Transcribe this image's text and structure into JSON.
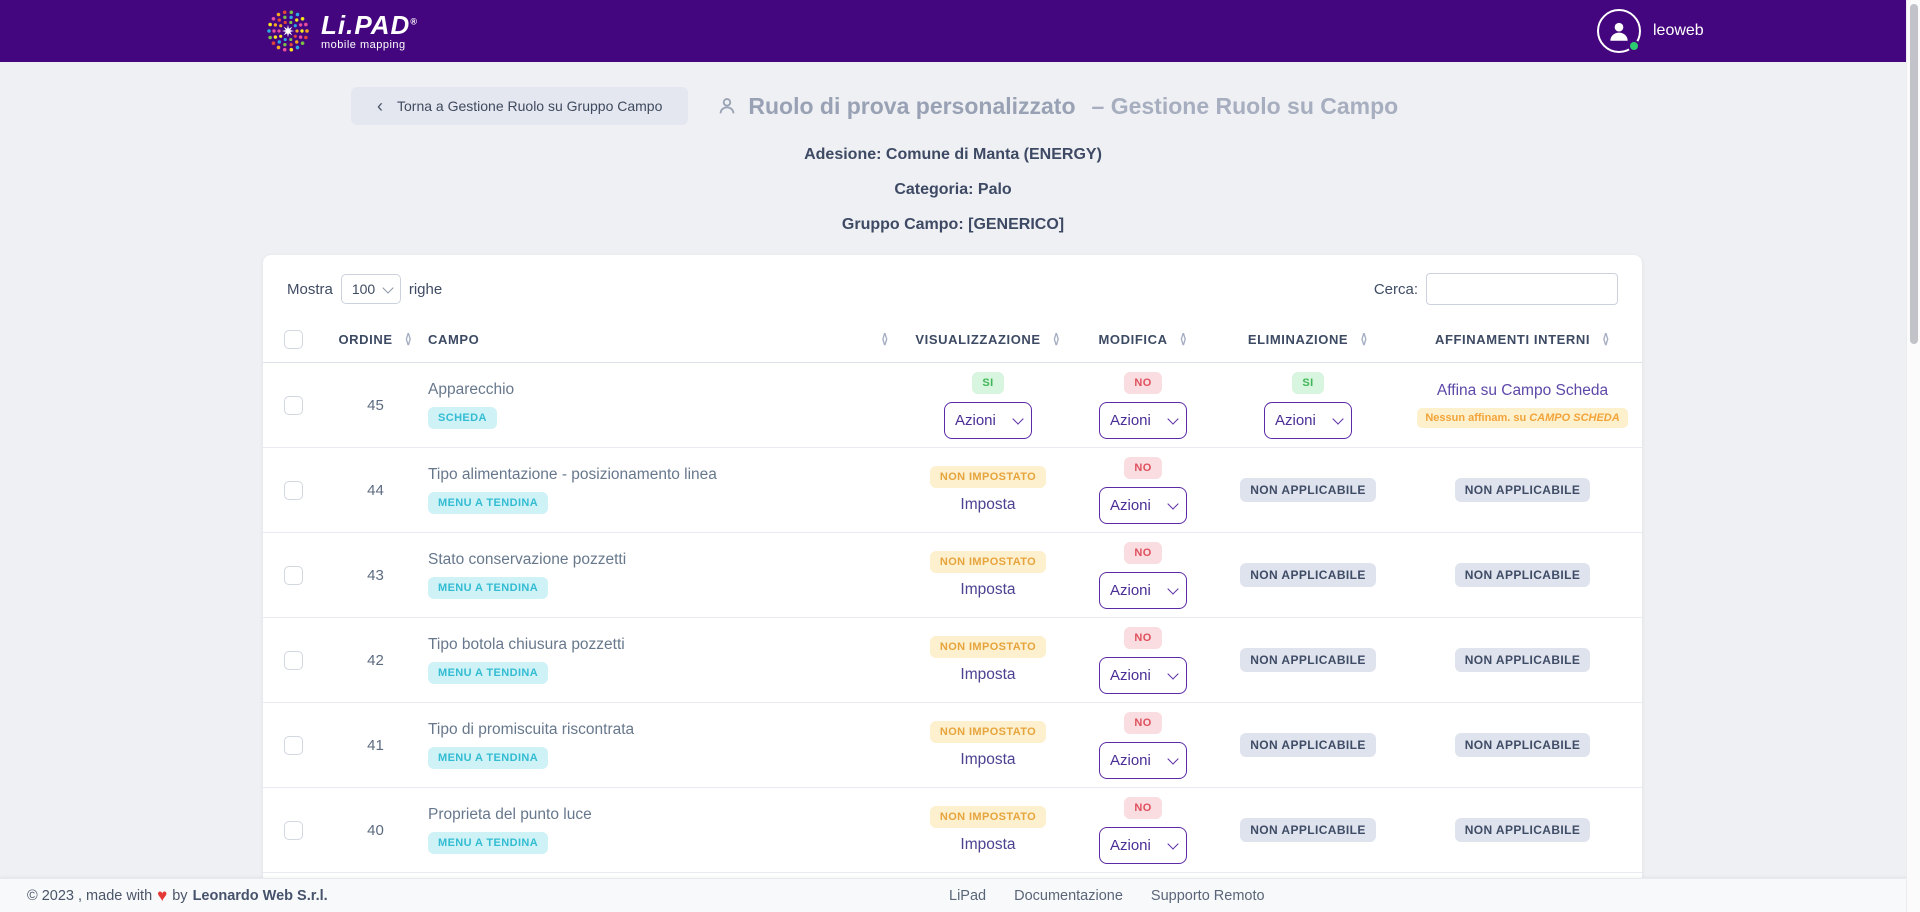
{
  "colors": {
    "header_purple": "#44067e",
    "accent_purple": "#5b2ba6",
    "badge_green_bg": "#d8f5df",
    "badge_green_text": "#41b658",
    "badge_red_bg": "#fadde1",
    "badge_red_text": "#df4f5c",
    "badge_yellow_bg": "#fcf0cf",
    "badge_yellow_text": "#e7a43c",
    "badge_gray_bg": "#dfe3ed",
    "badge_gray_text": "#3f4c66",
    "badge_cyan_bg": "#cff2f7",
    "badge_cyan_text": "#33bcd2",
    "status_dot_green": "#2ecc71"
  },
  "header": {
    "brand": "Li.PAD",
    "brand_mark": "®",
    "tagline": "mobile mapping",
    "user": "leoweb"
  },
  "page": {
    "back_chevron": "‹",
    "back_label": "Torna a Gestione Ruolo su Gruppo Campo",
    "title_bold": "Ruolo di prova personalizzato",
    "title_rest": "– Gestione Ruolo su Campo",
    "meta": [
      {
        "label": "Adesione:",
        "value": "Comune di Manta (ENERGY)"
      },
      {
        "label": "Categoria:",
        "value": "Palo"
      },
      {
        "label": "Gruppo Campo:",
        "value": "[GENERICO]"
      }
    ]
  },
  "table": {
    "show_label": "Mostra",
    "page_size": "100",
    "rows_word": "righe",
    "search_label": "Cerca:",
    "search_value": "",
    "columns": [
      "ORDINE",
      "CAMPO",
      "VISUALIZZAZIONE",
      "MODIFICA",
      "ELIMINAZIONE",
      "AFFINAMENTI INTERNI"
    ],
    "azioni_label": "Azioni",
    "imposta_label": "Imposta",
    "rows": [
      {
        "ordine": "45",
        "campo": "Apparecchio",
        "tipo": "SCHEDA",
        "vis": {
          "badge": "SI",
          "style": "green",
          "control": "azioni"
        },
        "mod": {
          "badge": "NO",
          "style": "red",
          "control": "azioni"
        },
        "elim": {
          "badge": "SI",
          "style": "green",
          "control": "azioni"
        },
        "aff": {
          "link": "Affina su Campo Scheda",
          "note_prefix": "Nessun affinam. su",
          "note_em": "CAMPO SCHEDA"
        }
      },
      {
        "ordine": "44",
        "campo": "Tipo alimentazione - posizionamento linea",
        "tipo": "MENU A TENDINA",
        "vis": {
          "badge": "NON IMPOSTATO",
          "style": "yellow",
          "control": "imposta"
        },
        "mod": {
          "badge": "NO",
          "style": "red",
          "control": "azioni"
        },
        "elim": {
          "badge": "NON APPLICABILE",
          "style": "gray"
        },
        "aff": {
          "badge": "NON APPLICABILE",
          "style": "gray"
        }
      },
      {
        "ordine": "43",
        "campo": "Stato conservazione pozzetti",
        "tipo": "MENU A TENDINA",
        "vis": {
          "badge": "NON IMPOSTATO",
          "style": "yellow",
          "control": "imposta"
        },
        "mod": {
          "badge": "NO",
          "style": "red",
          "control": "azioni"
        },
        "elim": {
          "badge": "NON APPLICABILE",
          "style": "gray"
        },
        "aff": {
          "badge": "NON APPLICABILE",
          "style": "gray"
        }
      },
      {
        "ordine": "42",
        "campo": "Tipo botola chiusura pozzetti",
        "tipo": "MENU A TENDINA",
        "vis": {
          "badge": "NON IMPOSTATO",
          "style": "yellow",
          "control": "imposta"
        },
        "mod": {
          "badge": "NO",
          "style": "red",
          "control": "azioni"
        },
        "elim": {
          "badge": "NON APPLICABILE",
          "style": "gray"
        },
        "aff": {
          "badge": "NON APPLICABILE",
          "style": "gray"
        }
      },
      {
        "ordine": "41",
        "campo": "Tipo di promiscuita riscontrata",
        "tipo": "MENU A TENDINA",
        "vis": {
          "badge": "NON IMPOSTATO",
          "style": "yellow",
          "control": "imposta"
        },
        "mod": {
          "badge": "NO",
          "style": "red",
          "control": "azioni"
        },
        "elim": {
          "badge": "NON APPLICABILE",
          "style": "gray"
        },
        "aff": {
          "badge": "NON APPLICABILE",
          "style": "gray"
        }
      },
      {
        "ordine": "40",
        "campo": "Proprieta del punto luce",
        "tipo": "MENU A TENDINA",
        "vis": {
          "badge": "NON IMPOSTATO",
          "style": "yellow",
          "control": "imposta"
        },
        "mod": {
          "badge": "NO",
          "style": "red",
          "control": "azioni"
        },
        "elim": {
          "badge": "NON APPLICABILE",
          "style": "gray"
        },
        "aff": {
          "badge": "NON APPLICABILE",
          "style": "gray"
        }
      }
    ]
  },
  "footer": {
    "copyright": "© 2023 , made with",
    "heart": "♥",
    "by": "by",
    "company": "Leonardo Web S.r.l.",
    "links": [
      "LiPad",
      "Documentazione",
      "Supporto Remoto"
    ]
  }
}
